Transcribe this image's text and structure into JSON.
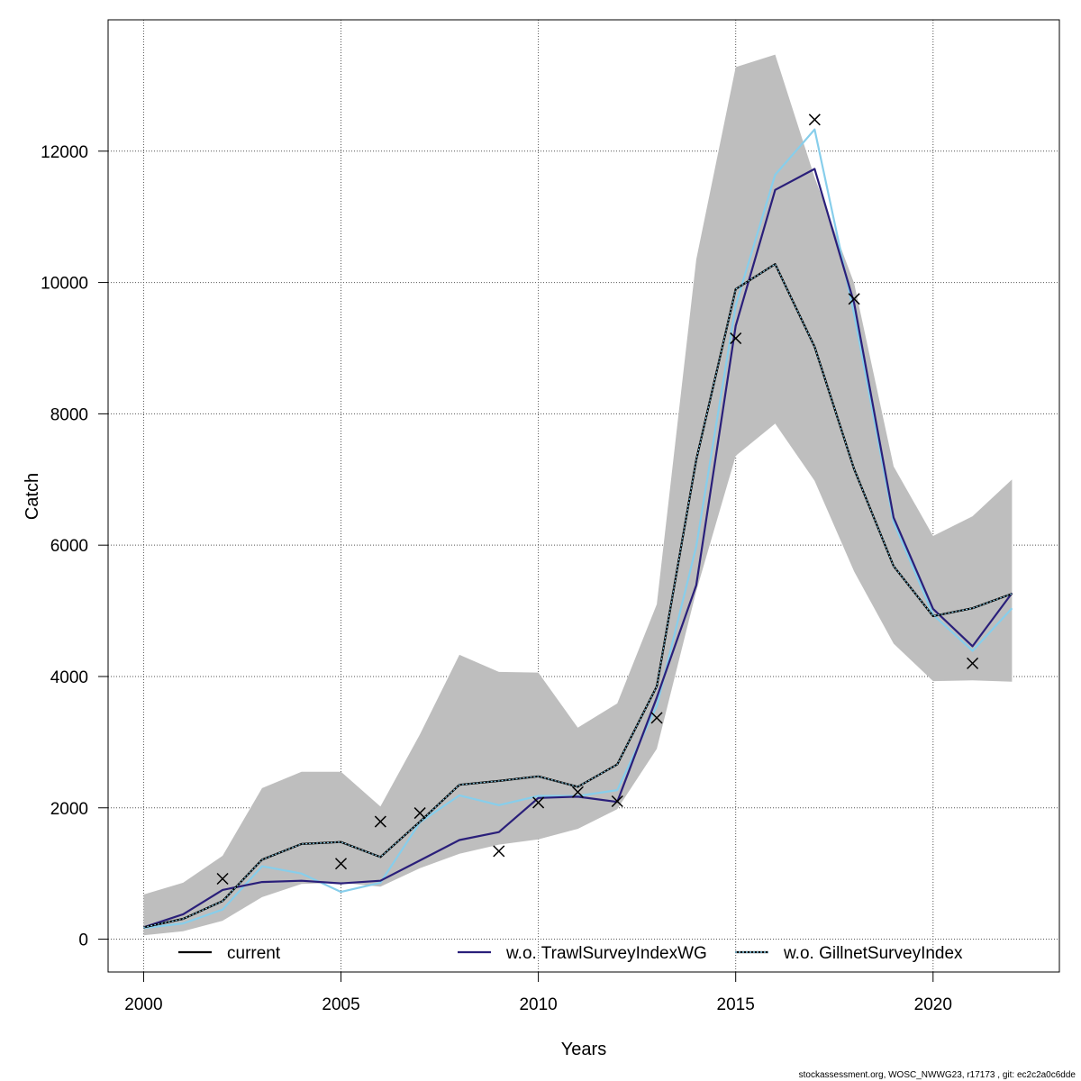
{
  "chart_data": {
    "type": "line",
    "xlabel": "Years",
    "ylabel": "Catch",
    "xlim": [
      1999.1,
      2023.2
    ],
    "ylim": [
      -500,
      14000
    ],
    "x_ticks": [
      2000,
      2005,
      2010,
      2015,
      2020
    ],
    "y_ticks": [
      0,
      2000,
      4000,
      6000,
      8000,
      10000,
      12000
    ],
    "grid": true,
    "legend_position": "bottom",
    "x": [
      2000,
      2001,
      2002,
      2003,
      2004,
      2005,
      2006,
      2007,
      2008,
      2009,
      2010,
      2011,
      2012,
      2013,
      2014,
      2015,
      2016,
      2017,
      2018,
      2019,
      2020,
      2021,
      2022
    ],
    "confidence_band": {
      "color": "#bebebe",
      "lower": [
        60,
        120,
        280,
        640,
        840,
        860,
        800,
        1080,
        1300,
        1440,
        1520,
        1680,
        1980,
        2900,
        5300,
        7360,
        7850,
        6980,
        5600,
        4500,
        3930,
        3940,
        3920
      ],
      "upper": [
        680,
        860,
        1270,
        2300,
        2550,
        2550,
        2020,
        3120,
        4330,
        4070,
        4060,
        3220,
        3590,
        5100,
        10350,
        13280,
        13470,
        11600,
        9990,
        7200,
        6140,
        6440,
        7000
      ]
    },
    "series": [
      {
        "name": "current",
        "color": "#000000",
        "dashed_overlay_color": "#87ceeb",
        "values": [
          180,
          310,
          580,
          1210,
          1450,
          1480,
          1250,
          1790,
          2350,
          2410,
          2480,
          2320,
          2660,
          3850,
          7300,
          9900,
          10280,
          9020,
          7160,
          5680,
          4920,
          5040,
          5260
        ]
      },
      {
        "name": "w.o. TrawlSurveyIndexWG",
        "color": "#2a1f7a",
        "values": [
          180,
          380,
          750,
          870,
          890,
          850,
          890,
          1200,
          1510,
          1630,
          2150,
          2170,
          2090,
          3680,
          5390,
          9340,
          11410,
          11730,
          9690,
          6420,
          5030,
          4460,
          5270
        ]
      },
      {
        "name": "w.o. GillnetSurveyIndex",
        "color": "#87ceeb",
        "values": [
          170,
          240,
          450,
          1110,
          1000,
          720,
          860,
          1780,
          2190,
          2040,
          2180,
          2180,
          2270,
          3550,
          5980,
          9650,
          11640,
          12330,
          9520,
          6350,
          4940,
          4390,
          5040
        ]
      }
    ],
    "observations": {
      "marker": "x",
      "color": "#000000",
      "points": [
        [
          2002,
          920
        ],
        [
          2005,
          1150
        ],
        [
          2006,
          1790
        ],
        [
          2007,
          1920
        ],
        [
          2009,
          1340
        ],
        [
          2010,
          2080
        ],
        [
          2011,
          2240
        ],
        [
          2012,
          2100
        ],
        [
          2013,
          3370
        ],
        [
          2015,
          9150
        ],
        [
          2017,
          12480
        ],
        [
          2018,
          9750
        ],
        [
          2021,
          4200
        ]
      ]
    }
  },
  "footer": "stockassessment.org, WOSC_NWWG23, r17173 , git: ec2c2a0c6dde"
}
